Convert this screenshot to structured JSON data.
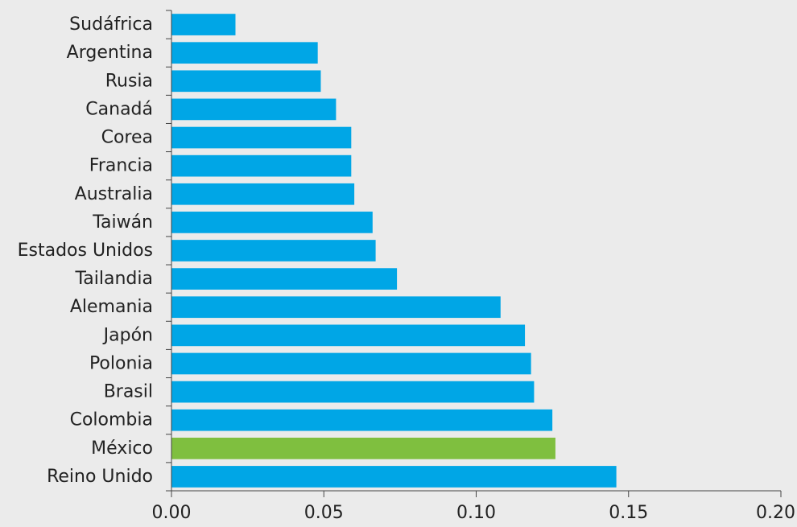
{
  "colors": {
    "background": "#ebebeb",
    "bar_default": "#00a6e6",
    "bar_highlight": "#7fbf3f",
    "axis": "#444444"
  },
  "chart_data": {
    "type": "bar",
    "orientation": "horizontal",
    "categories": [
      "Sudáfrica",
      "Argentina",
      "Rusia",
      "Canadá",
      "Corea",
      "Francia",
      "Australia",
      "Taiwán",
      "Estados Unidos",
      "Tailandia",
      "Alemania",
      "Japón",
      "Polonia",
      "Brasil",
      "Colombia",
      "México",
      "Reino Unido"
    ],
    "values": [
      0.021,
      0.048,
      0.049,
      0.054,
      0.059,
      0.059,
      0.06,
      0.066,
      0.067,
      0.074,
      0.108,
      0.116,
      0.118,
      0.119,
      0.125,
      0.126,
      0.146
    ],
    "highlight_category": "México",
    "xlim": [
      0,
      0.2
    ],
    "xticks": [
      0,
      0.05,
      0.1,
      0.15,
      0.2
    ],
    "xtick_labels": [
      "0.00",
      "0.05",
      "0.10",
      "0.15",
      "0.20"
    ],
    "grid": false,
    "legend": "none"
  }
}
